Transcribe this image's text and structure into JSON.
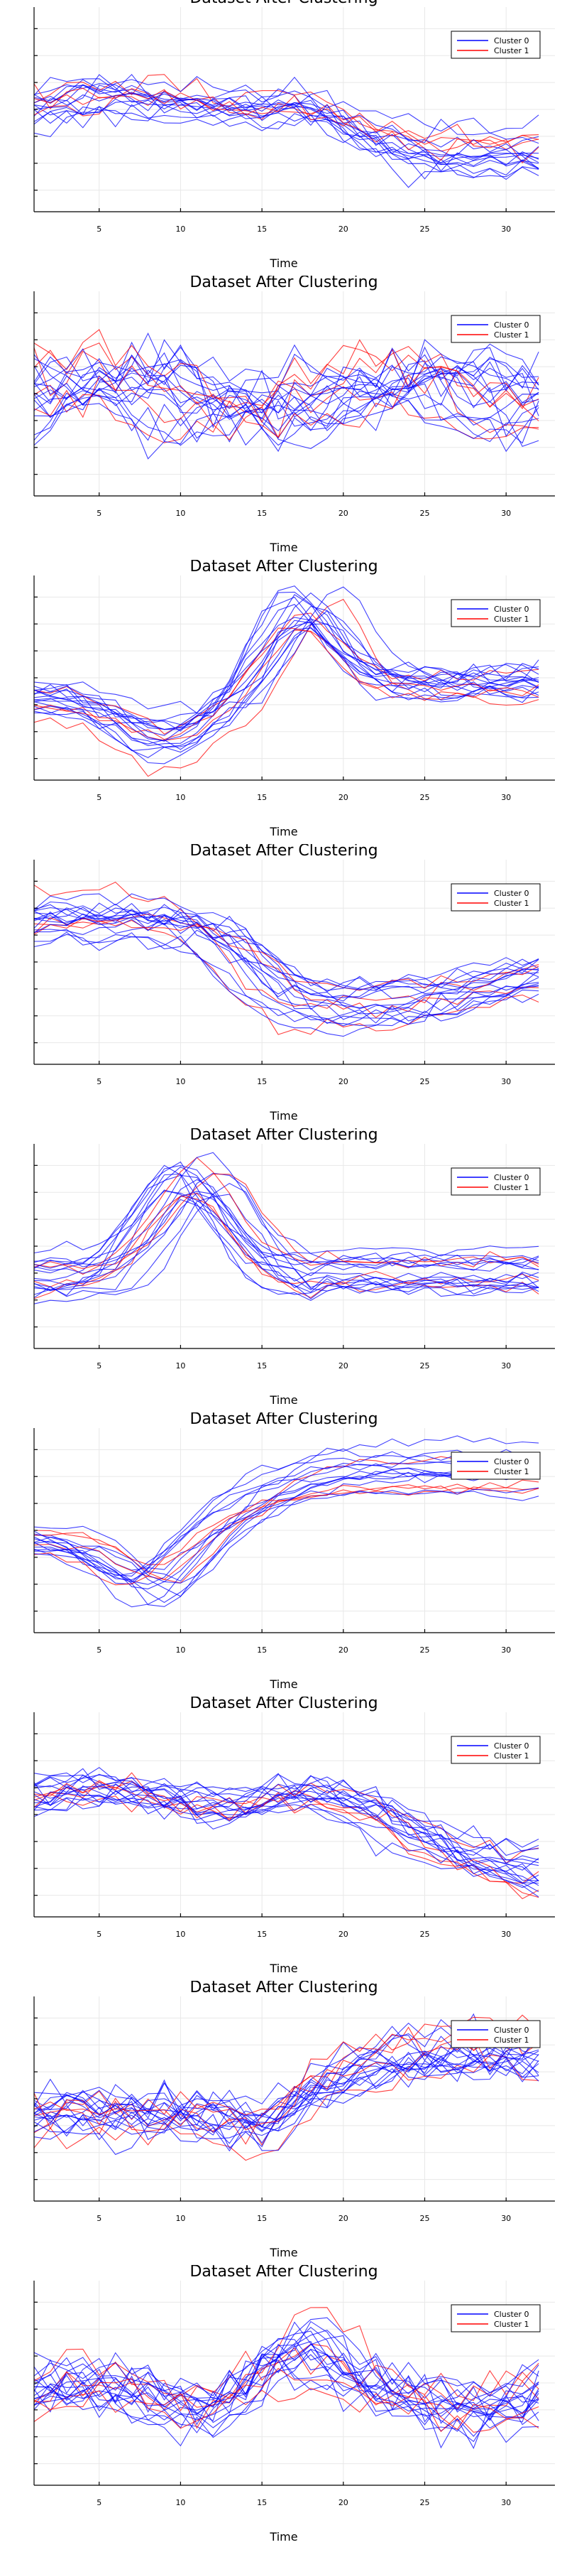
{
  "colors": {
    "cluster_0": "#0000ff",
    "cluster_1": "#ff0000"
  },
  "chart_data": [
    {
      "type": "line",
      "title": "Dataset After Clustering",
      "xlabel": "Time",
      "ylabel": "",
      "xlim": [
        1,
        32
      ],
      "x_ticks": [
        5,
        10,
        15,
        20,
        25,
        30
      ],
      "grid": true,
      "legend_position": "top-right",
      "legend": [
        "Cluster 0",
        "Cluster 1"
      ],
      "shape": "wave-then-drop",
      "n_series": 18
    },
    {
      "type": "line",
      "title": "Dataset After Clustering",
      "xlabel": "Time",
      "ylabel": "",
      "xlim": [
        1,
        32
      ],
      "x_ticks": [
        5,
        10,
        15,
        20,
        25,
        30
      ],
      "grid": true,
      "legend_position": "top-right",
      "legend": [
        "Cluster 0",
        "Cluster 1"
      ],
      "shape": "noisy",
      "n_series": 22
    },
    {
      "type": "line",
      "title": "Dataset After Clustering",
      "xlabel": "Time",
      "ylabel": "",
      "xlim": [
        1,
        32
      ],
      "x_ticks": [
        5,
        10,
        15,
        20,
        25,
        30
      ],
      "grid": true,
      "legend_position": "top-right",
      "legend": [
        "Cluster 0",
        "Cluster 1"
      ],
      "shape": "dip-peak-plateau",
      "n_series": 20
    },
    {
      "type": "line",
      "title": "Dataset After Clustering",
      "xlabel": "Time",
      "ylabel": "",
      "xlim": [
        1,
        32
      ],
      "x_ticks": [
        5,
        10,
        15,
        20,
        25,
        30
      ],
      "grid": true,
      "legend_position": "top-right",
      "legend": [
        "Cluster 0",
        "Cluster 1"
      ],
      "shape": "high-drop-rise",
      "n_series": 20
    },
    {
      "type": "line",
      "title": "Dataset After Clustering",
      "xlabel": "Time",
      "ylabel": "",
      "xlim": [
        1,
        32
      ],
      "x_ticks": [
        5,
        10,
        15,
        20,
        25,
        30
      ],
      "grid": true,
      "legend_position": "top-right",
      "legend": [
        "Cluster 0",
        "Cluster 1"
      ],
      "shape": "early-peak",
      "n_series": 20
    },
    {
      "type": "line",
      "title": "Dataset After Clustering",
      "xlabel": "Time",
      "ylabel": "",
      "xlim": [
        1,
        32
      ],
      "x_ticks": [
        5,
        10,
        15,
        20,
        25,
        30
      ],
      "grid": true,
      "legend_position": "top-right",
      "legend": [
        "Cluster 0",
        "Cluster 1"
      ],
      "shape": "valley-rise",
      "n_series": 18
    },
    {
      "type": "line",
      "title": "Dataset After Clustering",
      "xlabel": "Time",
      "ylabel": "",
      "xlim": [
        1,
        32
      ],
      "x_ticks": [
        5,
        10,
        15,
        20,
        25,
        30
      ],
      "grid": true,
      "legend_position": "top-right",
      "legend": [
        "Cluster 0",
        "Cluster 1"
      ],
      "shape": "plateau-drop",
      "n_series": 20
    },
    {
      "type": "line",
      "title": "Dataset After Clustering",
      "xlabel": "Time",
      "ylabel": "",
      "xlim": [
        1,
        32
      ],
      "x_ticks": [
        5,
        10,
        15,
        20,
        25,
        30
      ],
      "grid": true,
      "legend_position": "top-right",
      "legend": [
        "Cluster 0",
        "Cluster 1"
      ],
      "shape": "late-rise",
      "n_series": 22
    },
    {
      "type": "line",
      "title": "Dataset After Clustering",
      "xlabel": "Time",
      "ylabel": "",
      "xlim": [
        1,
        32
      ],
      "x_ticks": [
        5,
        10,
        15,
        20,
        25,
        30
      ],
      "grid": true,
      "legend_position": "top-right",
      "legend": [
        "Cluster 0",
        "Cluster 1"
      ],
      "shape": "noisy-mid-peak",
      "n_series": 22
    }
  ]
}
